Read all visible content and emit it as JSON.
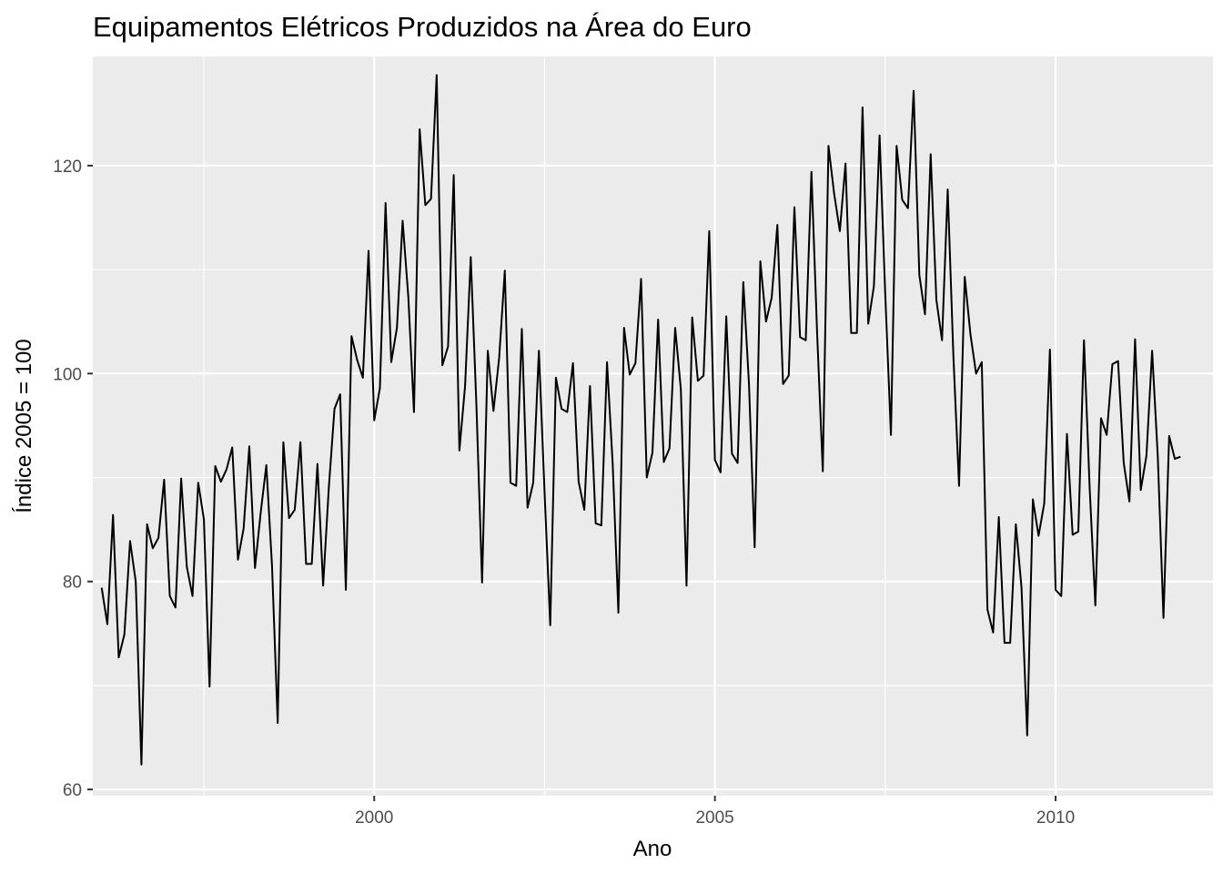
{
  "chart_data": {
    "type": "line",
    "title": "Equipamentos Elétricos Produzidos na Área do Euro",
    "xlabel": "Ano",
    "ylabel": "Índice 2005 = 100",
    "xlim": [
      1995.87,
      2012.31
    ],
    "ylim": [
      59.4,
      130.5
    ],
    "x_ticks": [
      2000,
      2005,
      2010
    ],
    "x_tick_labels": [
      "2000",
      "2005",
      "2010"
    ],
    "x_minor_ticks": [
      1997.5,
      2002.5,
      2007.5
    ],
    "y_ticks": [
      60,
      80,
      100,
      120
    ],
    "y_tick_labels": [
      "60",
      "80",
      "100",
      "120"
    ],
    "y_minor_ticks": [
      70,
      90,
      110
    ],
    "grid": true,
    "legend": "none",
    "colors": {
      "panel_background": "#EBEBEB",
      "grid": "#FFFFFF",
      "line": "#000000"
    },
    "series": [
      {
        "start": "1996-01",
        "frequency": "monthly",
        "values": [
          79.4,
          75.9,
          86.4,
          72.7,
          74.9,
          83.9,
          80.0,
          62.4,
          85.5,
          83.2,
          84.2,
          89.8,
          78.6,
          77.5,
          89.9,
          81.4,
          78.6,
          89.5,
          86.0,
          69.9,
          91.1,
          89.6,
          90.8,
          92.9,
          82.1,
          85.1,
          93.0,
          81.3,
          86.6,
          91.2,
          81.5,
          66.4,
          93.4,
          86.1,
          86.9,
          93.4,
          81.7,
          81.7,
          91.3,
          79.6,
          89.0,
          96.6,
          98.0,
          79.2,
          103.6,
          101.3,
          99.6,
          111.8,
          95.5,
          98.6,
          116.4,
          101.1,
          104.4,
          114.7,
          107.4,
          96.3,
          123.5,
          116.2,
          116.8,
          128.7,
          100.8,
          102.6,
          119.1,
          92.6,
          98.8,
          111.2,
          96.9,
          79.9,
          102.2,
          96.4,
          101.5,
          109.9,
          89.5,
          89.2,
          104.3,
          87.1,
          89.5,
          102.2,
          88.6,
          75.8,
          99.6,
          96.6,
          96.3,
          101.0,
          89.6,
          86.9,
          98.8,
          85.6,
          85.4,
          101.1,
          91.3,
          77.0,
          104.4,
          99.9,
          101.0,
          109.1,
          90.0,
          92.4,
          105.2,
          91.5,
          92.8,
          104.4,
          98.5,
          79.6,
          105.4,
          99.3,
          99.8,
          113.7,
          91.7,
          90.5,
          105.5,
          92.3,
          91.4,
          108.8,
          99.0,
          83.3,
          110.8,
          105.0,
          107.3,
          114.3,
          99.0,
          99.8,
          116.0,
          103.5,
          103.2,
          119.4,
          103.9,
          90.6,
          121.9,
          117.3,
          113.7,
          120.2,
          103.9,
          103.9,
          125.6,
          104.8,
          108.4,
          122.9,
          107.6,
          94.1,
          121.9,
          116.7,
          115.9,
          127.2,
          109.5,
          105.7,
          121.1,
          107.1,
          103.2,
          117.7,
          101.7,
          89.2,
          109.3,
          103.8,
          100.0,
          101.1,
          77.3,
          75.1,
          86.2,
          74.1,
          74.1,
          85.5,
          79.4,
          65.2,
          87.9,
          84.4,
          87.5,
          102.3,
          79.2,
          78.6,
          94.2,
          84.5,
          84.8,
          103.2,
          89.0,
          77.7,
          95.7,
          94.1,
          100.9,
          101.2,
          91.4,
          87.7,
          103.3,
          88.8,
          92.1,
          102.2,
          92.0,
          76.5,
          94.0,
          91.8,
          92.0
        ]
      }
    ]
  }
}
